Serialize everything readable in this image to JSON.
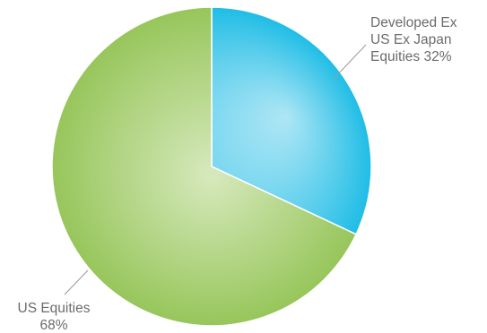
{
  "chart_data": {
    "type": "pie",
    "slices": [
      {
        "label_lines": [
          "Developed Ex",
          "US Ex Japan",
          "Equities 32%"
        ],
        "category": "Developed Ex US Ex Japan Equities",
        "value": 32,
        "color_center": "#aee6f5",
        "color_edge": "#1fbde6"
      },
      {
        "label_lines": [
          "US Equities",
          "68%"
        ],
        "category": "US Equities",
        "value": 68,
        "color_center": "#d7e9bd",
        "color_edge": "#97c65b"
      }
    ],
    "start_angle_deg": 0,
    "direction": "clockwise"
  }
}
